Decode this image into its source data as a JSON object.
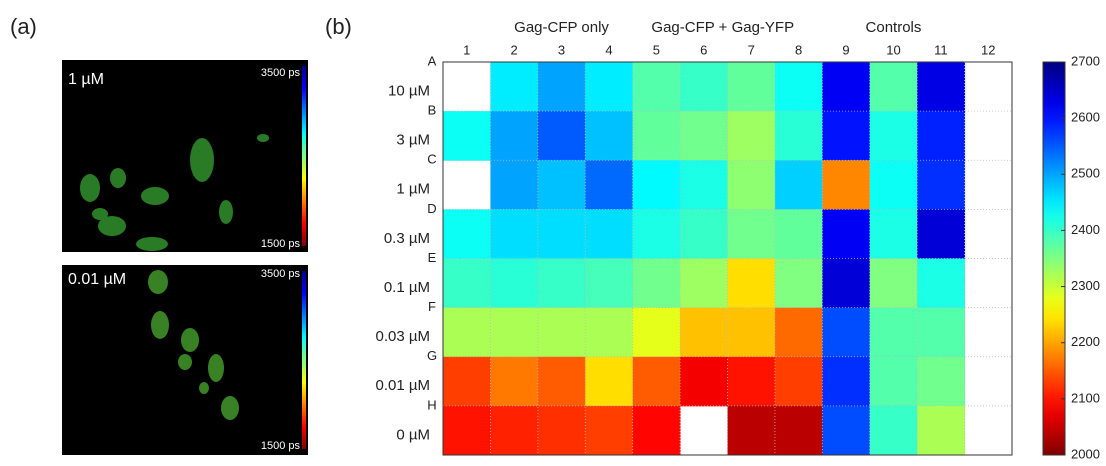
{
  "panel_a": {
    "label": "(a)",
    "images": [
      {
        "label": "1 µM",
        "scale_max": "3500 ps",
        "scale_min": "1500 ps"
      },
      {
        "label": "0.01 µM",
        "scale_max": "3500 ps",
        "scale_min": "1500 ps"
      }
    ]
  },
  "chart_data": {
    "type": "heatmap",
    "panel_label": "(b)",
    "column_groups": [
      "Gag-CFP only",
      "Gag-CFP + Gag-YFP",
      "Controls"
    ],
    "columns": [
      "1",
      "2",
      "3",
      "4",
      "5",
      "6",
      "7",
      "8",
      "9",
      "10",
      "11",
      "12"
    ],
    "row_letters": [
      "A",
      "B",
      "C",
      "D",
      "E",
      "F",
      "G",
      "H"
    ],
    "rows": [
      "10 µM",
      "3 µM",
      "1 µM",
      "0.3 µM",
      "0.1 µM",
      "0.03 µM",
      "0.01 µM",
      "0 µM"
    ],
    "values": [
      [
        null,
        2450,
        2500,
        2450,
        2380,
        2400,
        2370,
        2430,
        2620,
        2380,
        2630,
        null
      ],
      [
        2430,
        2500,
        2550,
        2480,
        2370,
        2360,
        2330,
        2410,
        2600,
        2420,
        2590,
        null
      ],
      [
        null,
        2500,
        2480,
        2540,
        2440,
        2420,
        2340,
        2470,
        2180,
        2430,
        2580,
        null
      ],
      [
        2430,
        2460,
        2460,
        2460,
        2420,
        2400,
        2360,
        2370,
        2620,
        2420,
        2640,
        null
      ],
      [
        2400,
        2410,
        2400,
        2390,
        2360,
        2330,
        2240,
        2350,
        2640,
        2350,
        2420,
        null
      ],
      [
        2320,
        2320,
        2320,
        2320,
        2280,
        2220,
        2220,
        2160,
        2560,
        2380,
        2380,
        null
      ],
      [
        2130,
        2170,
        2150,
        2240,
        2150,
        2080,
        2100,
        2130,
        2580,
        2380,
        2360,
        null
      ],
      [
        2100,
        2110,
        2120,
        2130,
        2090,
        null,
        2040,
        2040,
        2560,
        2400,
        2320,
        null
      ]
    ],
    "colormap": "jet",
    "zlim": [
      2000,
      2700
    ],
    "zticks": [
      2000,
      2100,
      2200,
      2300,
      2400,
      2500,
      2600,
      2700
    ]
  }
}
